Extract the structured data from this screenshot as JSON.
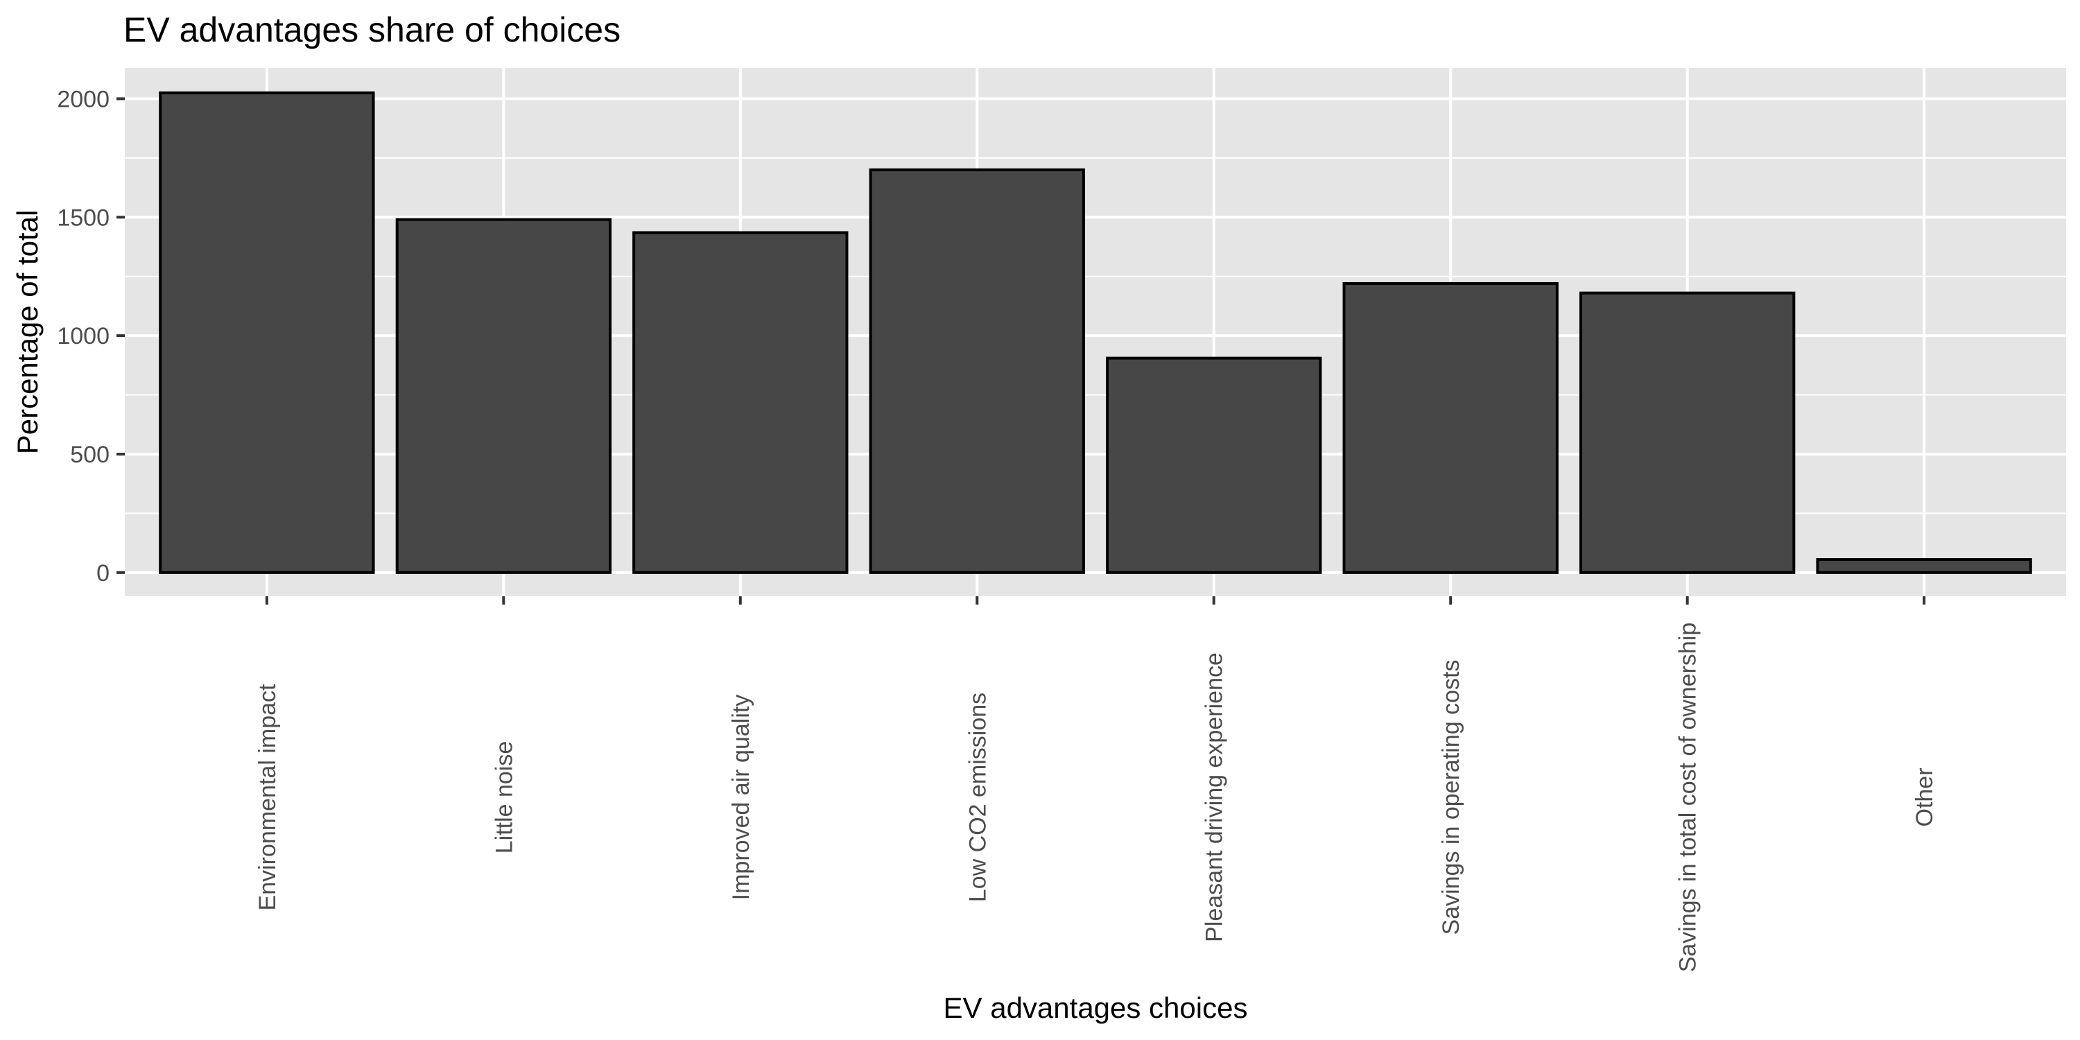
{
  "chart_data": {
    "type": "bar",
    "title": "EV advantages share of choices",
    "xlabel": "EV advantages choices",
    "ylabel": "Percentage of total",
    "categories": [
      "Environmental impact",
      "Little noise",
      "Improved air quality",
      "Low CO2 emissions",
      "Pleasant driving experience",
      "Savings in operating costs",
      "Savings in total cost of ownership",
      "Other"
    ],
    "values": [
      2025,
      1490,
      1435,
      1700,
      905,
      1220,
      1180,
      55
    ],
    "ylim": [
      -100,
      2130
    ],
    "yticks": [
      0,
      500,
      1000,
      1500,
      2000
    ],
    "grid": true,
    "legend": "none",
    "bar_color": "#474747",
    "panel_background": "#e5e5e5"
  }
}
